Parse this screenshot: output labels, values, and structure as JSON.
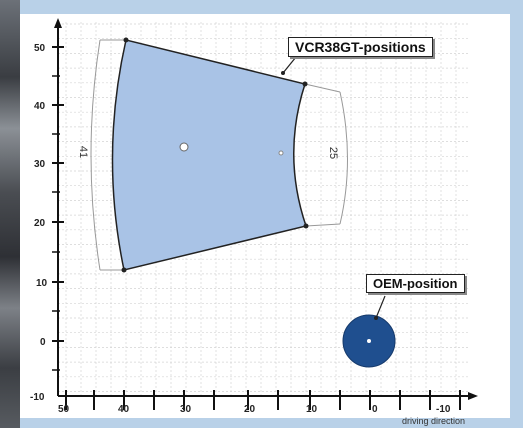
{
  "diagram": {
    "callouts": {
      "vcr": "VCR38GT-positions",
      "oem": "OEM-position"
    },
    "x_axis": {
      "caption": "driving direction",
      "ticks": [
        "50",
        "40",
        "30",
        "20",
        "10",
        "0",
        "-10"
      ]
    },
    "y_axis": {
      "ticks": [
        "50",
        "40",
        "30",
        "20",
        "10",
        "0",
        "-10"
      ]
    },
    "dimensions": {
      "left": "41",
      "right": "25"
    },
    "colors": {
      "region_fill": "#a9c3e6",
      "oem_fill": "#1f4f8f",
      "background": "#b9d1e8"
    }
  }
}
